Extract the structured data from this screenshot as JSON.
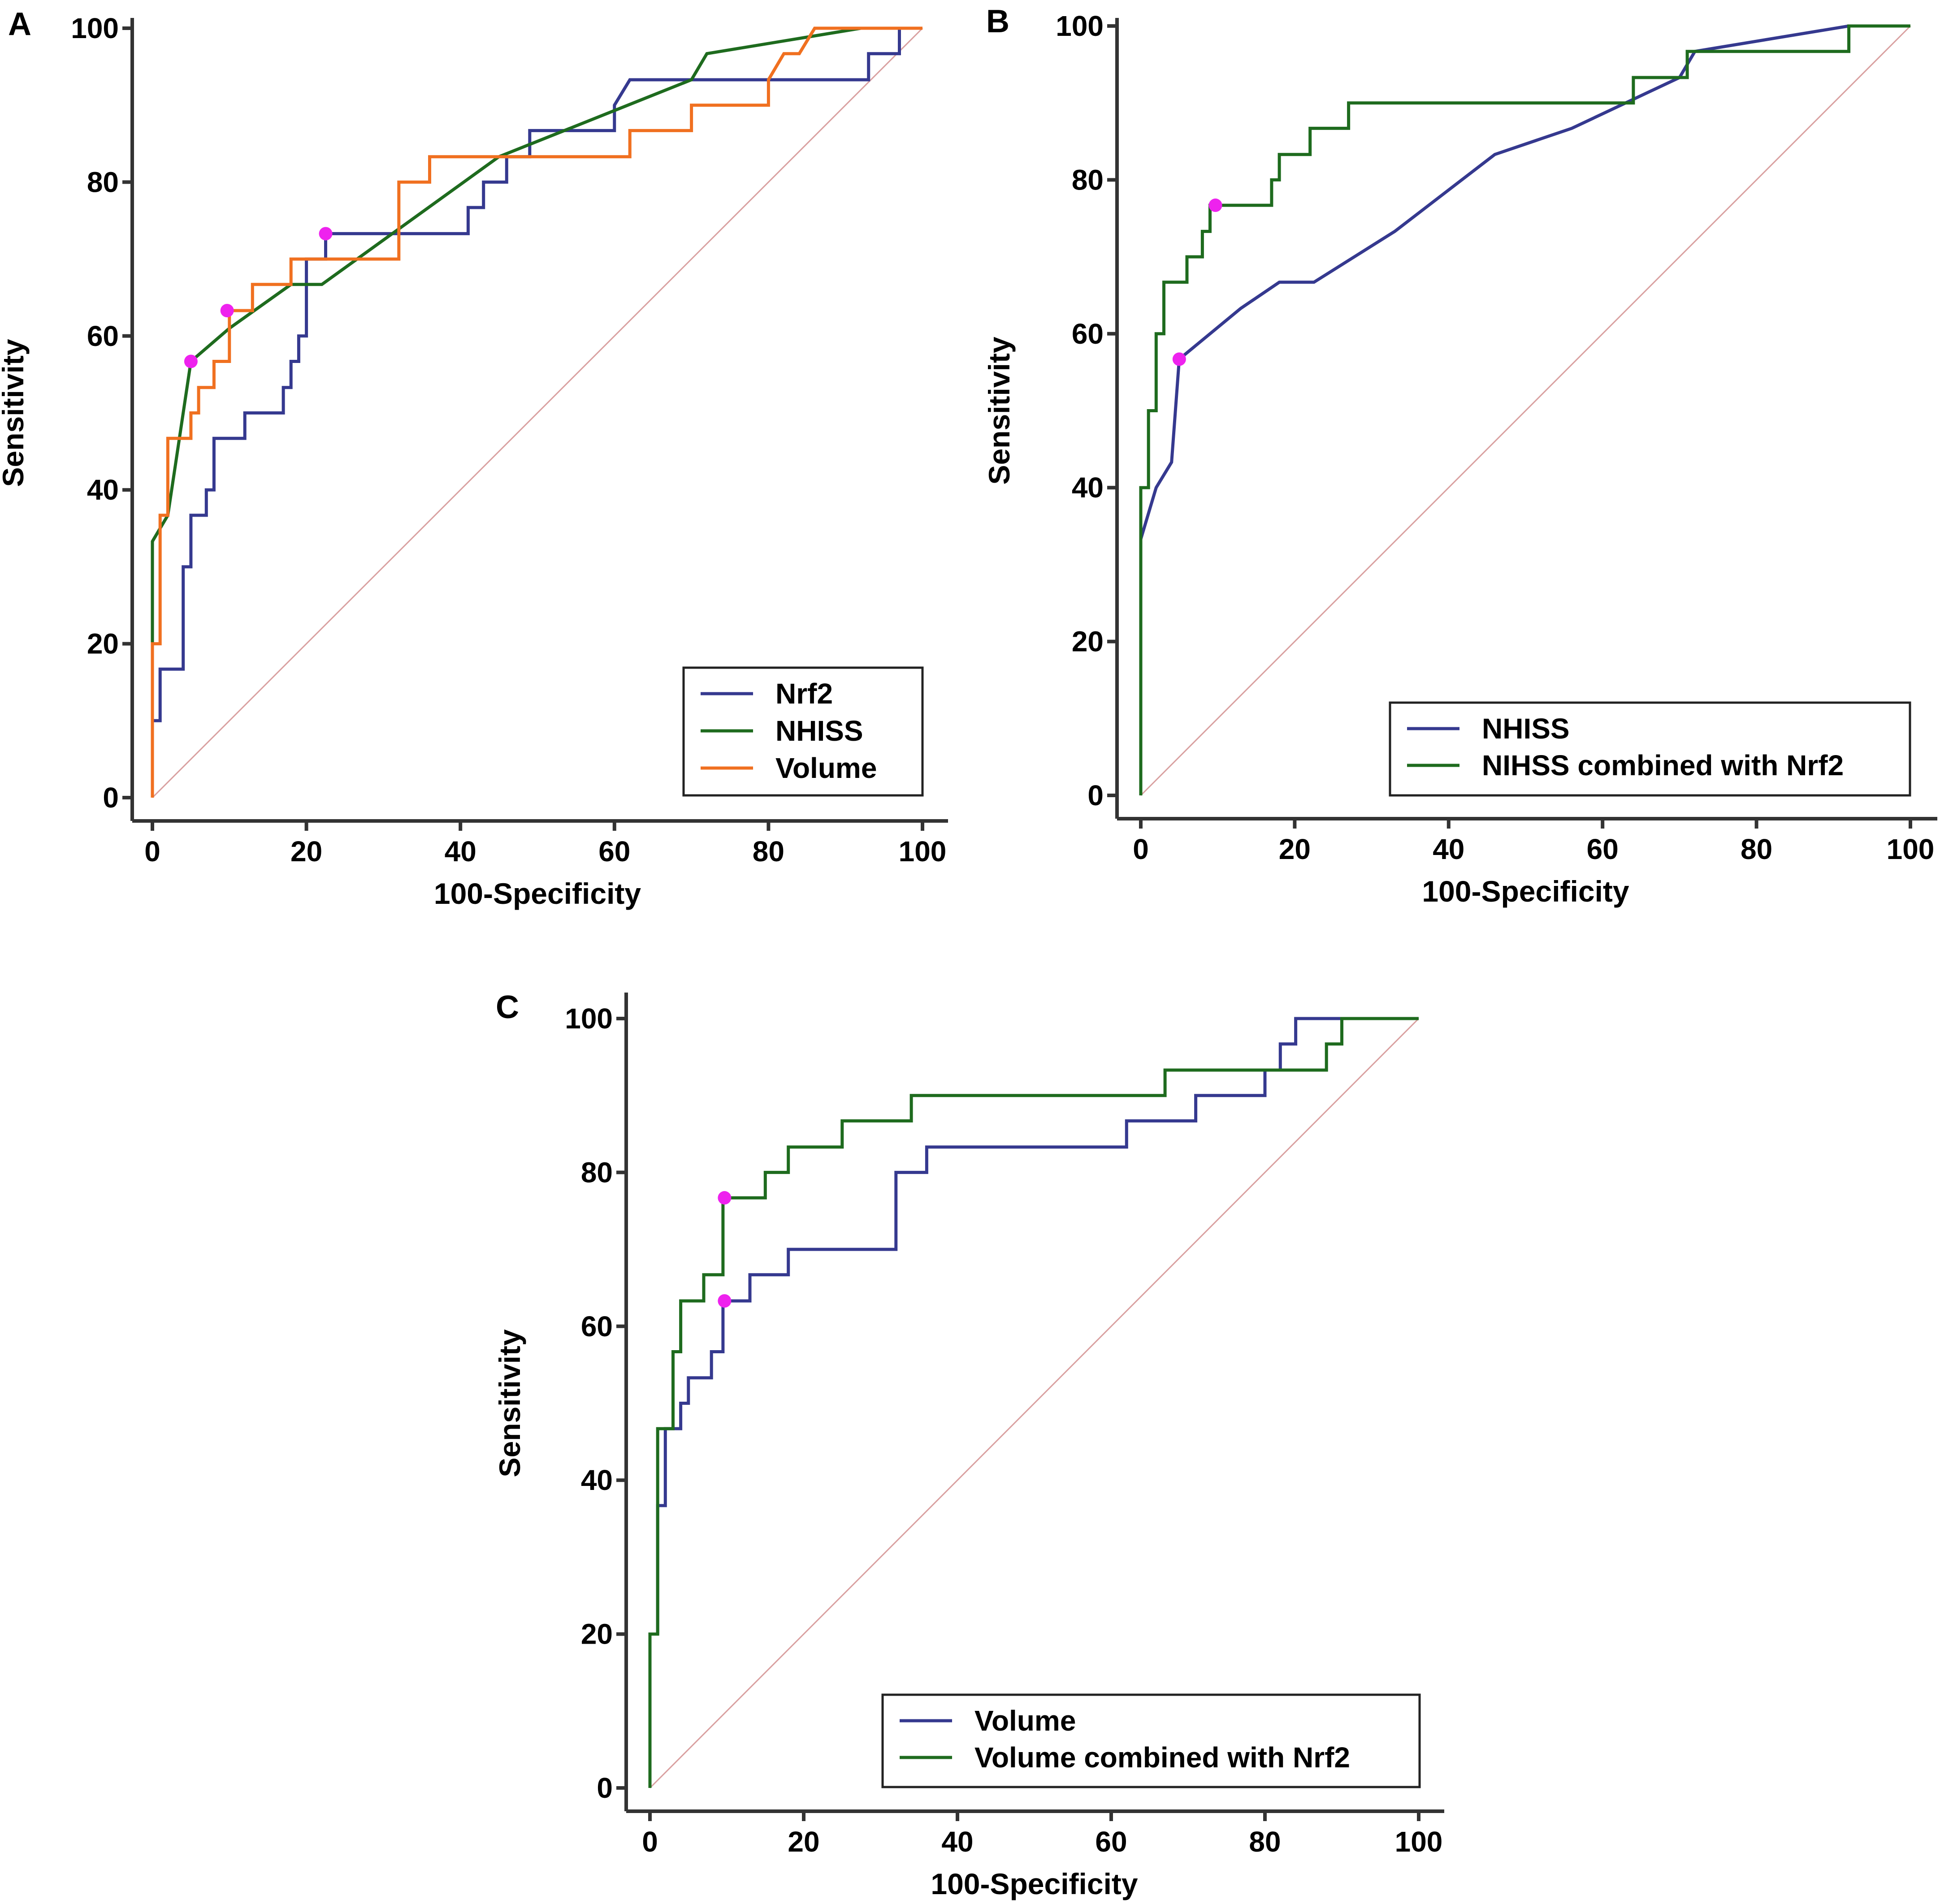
{
  "chart_data": [
    {
      "panel": "A",
      "type": "line",
      "xlabel": "100-Specificity",
      "ylabel": "Sensitivity",
      "xlim": [
        0,
        100
      ],
      "ylim": [
        0,
        100
      ],
      "xticks": [
        0,
        20,
        40,
        60,
        80,
        100
      ],
      "yticks": [
        0,
        20,
        40,
        60,
        80,
        100
      ],
      "legend_position": "bottom-right",
      "series": [
        {
          "name": "Nrf2",
          "color": "#35398f",
          "points": [
            [
              0,
              0
            ],
            [
              0,
              10
            ],
            [
              1,
              10
            ],
            [
              1,
              16.7
            ],
            [
              4,
              16.7
            ],
            [
              4,
              30
            ],
            [
              5,
              30
            ],
            [
              5,
              36.7
            ],
            [
              7,
              36.7
            ],
            [
              7,
              40
            ],
            [
              8,
              40
            ],
            [
              8,
              46.7
            ],
            [
              12,
              46.7
            ],
            [
              12,
              50
            ],
            [
              17,
              50
            ],
            [
              17,
              53.3
            ],
            [
              18,
              53.3
            ],
            [
              18,
              56.7
            ],
            [
              19,
              56.7
            ],
            [
              19,
              60
            ],
            [
              20,
              60
            ],
            [
              20,
              70
            ],
            [
              22.5,
              70
            ],
            [
              22.5,
              73.3
            ],
            [
              41,
              73.3
            ],
            [
              41,
              76.7
            ],
            [
              43,
              76.7
            ],
            [
              43,
              80
            ],
            [
              46,
              80
            ],
            [
              46,
              83.3
            ],
            [
              49,
              83.3
            ],
            [
              49,
              86.7
            ],
            [
              60,
              86.7
            ],
            [
              60,
              90
            ],
            [
              62,
              93.3
            ],
            [
              93,
              93.3
            ],
            [
              93,
              96.7
            ],
            [
              97,
              96.7
            ],
            [
              97,
              100
            ],
            [
              100,
              100
            ]
          ]
        },
        {
          "name": "NHISS",
          "color": "#1e6b1e",
          "points": [
            [
              0,
              0
            ],
            [
              0,
              20
            ],
            [
              0,
              33.3
            ],
            [
              2,
              36.7
            ],
            [
              3,
              43.3
            ],
            [
              4,
              50
            ],
            [
              5,
              56.7
            ],
            [
              10,
              61
            ],
            [
              18,
              66.7
            ],
            [
              22,
              66.7
            ],
            [
              45,
              83.3
            ],
            [
              70,
              93.3
            ],
            [
              72,
              96.7
            ],
            [
              92,
              100
            ],
            [
              100,
              100
            ]
          ]
        },
        {
          "name": "Volume",
          "color": "#f07020",
          "points": [
            [
              0,
              0
            ],
            [
              0,
              20
            ],
            [
              1,
              20
            ],
            [
              1,
              36.7
            ],
            [
              2,
              36.7
            ],
            [
              2,
              46.7
            ],
            [
              5,
              46.7
            ],
            [
              5,
              50
            ],
            [
              6,
              50
            ],
            [
              6,
              53.3
            ],
            [
              8,
              53.3
            ],
            [
              8,
              56.7
            ],
            [
              10,
              56.7
            ],
            [
              10,
              63.3
            ],
            [
              13,
              63.3
            ],
            [
              13,
              66.7
            ],
            [
              18,
              66.7
            ],
            [
              18,
              70
            ],
            [
              32,
              70
            ],
            [
              32,
              80
            ],
            [
              36,
              80
            ],
            [
              36,
              83.3
            ],
            [
              62,
              83.3
            ],
            [
              62,
              86.7
            ],
            [
              70,
              86.7
            ],
            [
              70,
              90
            ],
            [
              80,
              90
            ],
            [
              80,
              93.3
            ],
            [
              82,
              96.7
            ],
            [
              84,
              96.7
            ],
            [
              86,
              100
            ],
            [
              100,
              100
            ]
          ]
        }
      ],
      "markers": [
        [
          5,
          56.7
        ],
        [
          9.7,
          63.3
        ],
        [
          22.5,
          73.3
        ]
      ],
      "marker_color": "#ee22ee"
    },
    {
      "panel": "B",
      "type": "line",
      "xlabel": "100-Specificity",
      "ylabel": "Sensitivity",
      "xlim": [
        0,
        100
      ],
      "ylim": [
        0,
        100
      ],
      "xticks": [
        0,
        20,
        40,
        60,
        80,
        100
      ],
      "yticks": [
        0,
        20,
        40,
        60,
        80,
        100
      ],
      "legend_position": "bottom-right",
      "series": [
        {
          "name": "NHISS",
          "color": "#35398f",
          "points": [
            [
              0,
              33.3
            ],
            [
              2,
              40
            ],
            [
              4,
              43.3
            ],
            [
              5,
              56.7
            ],
            [
              13,
              63.3
            ],
            [
              18,
              66.7
            ],
            [
              22.5,
              66.7
            ],
            [
              33,
              73.3
            ],
            [
              46,
              83.3
            ],
            [
              56,
              86.7
            ],
            [
              70,
              93.3
            ],
            [
              72,
              96.7
            ],
            [
              92,
              100
            ],
            [
              100,
              100
            ]
          ]
        },
        {
          "name": "NIHSS combined with Nrf2",
          "color": "#1e6b1e",
          "points": [
            [
              0,
              0
            ],
            [
              0,
              40
            ],
            [
              1,
              40
            ],
            [
              1,
              50
            ],
            [
              2,
              50
            ],
            [
              2,
              60
            ],
            [
              3,
              60
            ],
            [
              3,
              66.7
            ],
            [
              6,
              66.7
            ],
            [
              6,
              70
            ],
            [
              8,
              70
            ],
            [
              8,
              73.3
            ],
            [
              9,
              73.3
            ],
            [
              9,
              76.7
            ],
            [
              17,
              76.7
            ],
            [
              17,
              80
            ],
            [
              18,
              80
            ],
            [
              18,
              83.3
            ],
            [
              22,
              83.3
            ],
            [
              22,
              86.7
            ],
            [
              27,
              86.7
            ],
            [
              27,
              90
            ],
            [
              64,
              90
            ],
            [
              64,
              93.3
            ],
            [
              71,
              93.3
            ],
            [
              71,
              96.7
            ],
            [
              92,
              96.7
            ],
            [
              92,
              100
            ],
            [
              100,
              100
            ]
          ]
        }
      ],
      "markers": [
        [
          5,
          56.7
        ],
        [
          9.7,
          76.7
        ]
      ],
      "marker_color": "#ee22ee"
    },
    {
      "panel": "C",
      "type": "line",
      "xlabel": "100-Specificity",
      "ylabel": "Sensitivity",
      "xlim": [
        0,
        100
      ],
      "ylim": [
        0,
        100
      ],
      "xticks": [
        0,
        20,
        40,
        60,
        80,
        100
      ],
      "yticks": [
        0,
        20,
        40,
        60,
        80,
        100
      ],
      "legend_position": "bottom-right",
      "series": [
        {
          "name": "Volume",
          "color": "#35398f",
          "points": [
            [
              1,
              20
            ],
            [
              1,
              36.7
            ],
            [
              2,
              36.7
            ],
            [
              2,
              46.7
            ],
            [
              4,
              46.7
            ],
            [
              4,
              50
            ],
            [
              5,
              50
            ],
            [
              5,
              53.3
            ],
            [
              8,
              53.3
            ],
            [
              8,
              56.7
            ],
            [
              9.5,
              56.7
            ],
            [
              9.5,
              63.3
            ],
            [
              13,
              63.3
            ],
            [
              13,
              66.7
            ],
            [
              18,
              66.7
            ],
            [
              18,
              70
            ],
            [
              32,
              70
            ],
            [
              32,
              80
            ],
            [
              36,
              80
            ],
            [
              36,
              83.3
            ],
            [
              62,
              83.3
            ],
            [
              62,
              86.7
            ],
            [
              71,
              86.7
            ],
            [
              71,
              90
            ],
            [
              80,
              90
            ],
            [
              80,
              93.3
            ],
            [
              82,
              93.3
            ],
            [
              82,
              96.7
            ],
            [
              84,
              96.7
            ],
            [
              84,
              100
            ],
            [
              100,
              100
            ]
          ]
        },
        {
          "name": "Volume combined with Nrf2",
          "color": "#1e6b1e",
          "points": [
            [
              0,
              0
            ],
            [
              0,
              20
            ],
            [
              1,
              20
            ],
            [
              1,
              46.7
            ],
            [
              3,
              46.7
            ],
            [
              3,
              56.7
            ],
            [
              4,
              56.7
            ],
            [
              4,
              63.3
            ],
            [
              7,
              63.3
            ],
            [
              7,
              66.7
            ],
            [
              9.5,
              66.7
            ],
            [
              9.5,
              76.7
            ],
            [
              15,
              76.7
            ],
            [
              15,
              80
            ],
            [
              18,
              80
            ],
            [
              18,
              83.3
            ],
            [
              25,
              83.3
            ],
            [
              25,
              86.7
            ],
            [
              34,
              86.7
            ],
            [
              34,
              90
            ],
            [
              67,
              90
            ],
            [
              67,
              93.3
            ],
            [
              88,
              93.3
            ],
            [
              88,
              96.7
            ],
            [
              90,
              96.7
            ],
            [
              90,
              100
            ],
            [
              100,
              100
            ]
          ]
        }
      ],
      "markers": [
        [
          9.7,
          63.3
        ],
        [
          9.7,
          76.7
        ]
      ],
      "marker_color": "#ee22ee"
    }
  ]
}
